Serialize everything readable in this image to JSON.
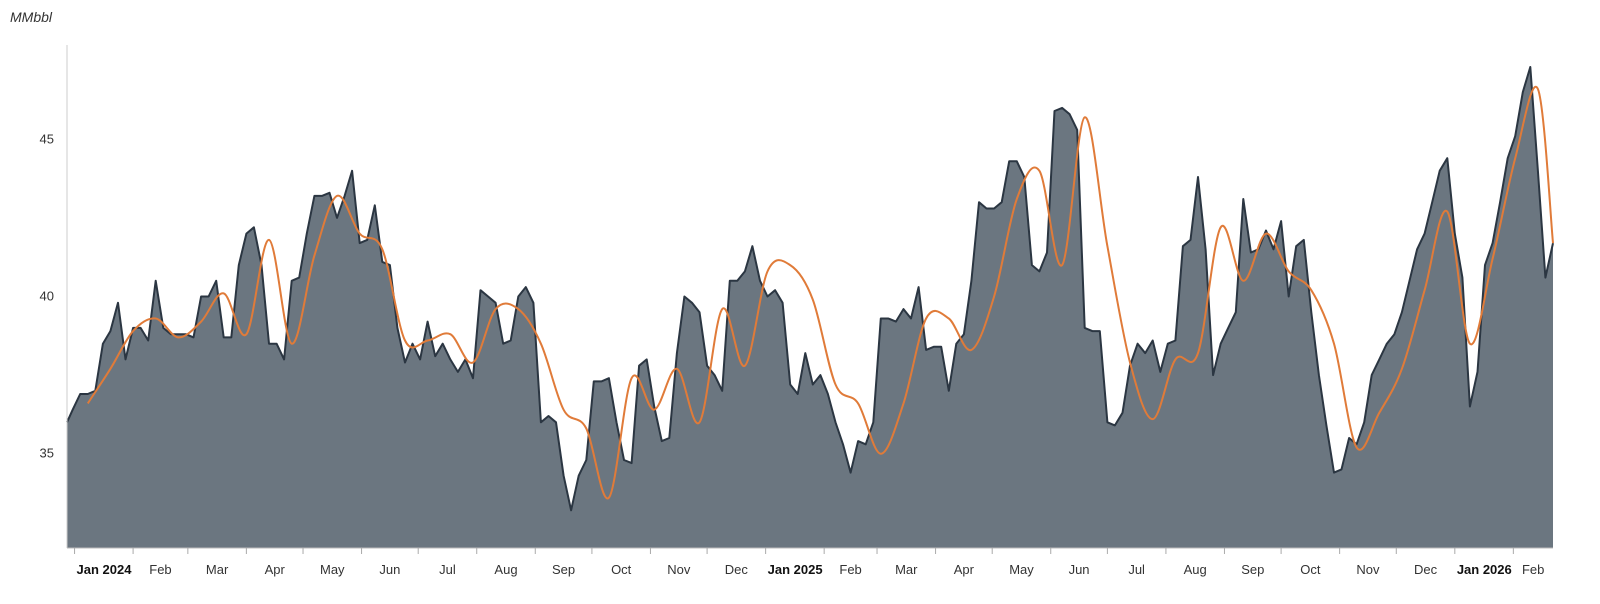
{
  "chart_data": {
    "type": "area",
    "unit_label": "MMbbl",
    "xlim": [
      "2023-12-28",
      "2026-02-22"
    ],
    "ylim": [
      32,
      48
    ],
    "yticks": [
      35,
      40,
      45
    ],
    "xticks": [
      {
        "date": "2024-01-01",
        "label": "Jan 2024",
        "bold": true
      },
      {
        "date": "2024-02-01",
        "label": "Feb",
        "bold": false
      },
      {
        "date": "2024-03-01",
        "label": "Mar",
        "bold": false
      },
      {
        "date": "2024-04-01",
        "label": "Apr",
        "bold": false
      },
      {
        "date": "2024-05-01",
        "label": "May",
        "bold": false
      },
      {
        "date": "2024-06-01",
        "label": "Jun",
        "bold": false
      },
      {
        "date": "2024-07-01",
        "label": "Jul",
        "bold": false
      },
      {
        "date": "2024-08-01",
        "label": "Aug",
        "bold": false
      },
      {
        "date": "2024-09-01",
        "label": "Sep",
        "bold": false
      },
      {
        "date": "2024-10-01",
        "label": "Oct",
        "bold": false
      },
      {
        "date": "2024-11-01",
        "label": "Nov",
        "bold": false
      },
      {
        "date": "2024-12-01",
        "label": "Dec",
        "bold": false
      },
      {
        "date": "2025-01-01",
        "label": "Jan 2025",
        "bold": true
      },
      {
        "date": "2025-02-01",
        "label": "Feb",
        "bold": false
      },
      {
        "date": "2025-03-01",
        "label": "Mar",
        "bold": false
      },
      {
        "date": "2025-04-01",
        "label": "Apr",
        "bold": false
      },
      {
        "date": "2025-05-01",
        "label": "May",
        "bold": false
      },
      {
        "date": "2025-06-01",
        "label": "Jun",
        "bold": false
      },
      {
        "date": "2025-07-01",
        "label": "Jul",
        "bold": false
      },
      {
        "date": "2025-08-01",
        "label": "Aug",
        "bold": false
      },
      {
        "date": "2025-09-01",
        "label": "Sep",
        "bold": false
      },
      {
        "date": "2025-10-01",
        "label": "Oct",
        "bold": false
      },
      {
        "date": "2025-11-01",
        "label": "Nov",
        "bold": false
      },
      {
        "date": "2025-12-01",
        "label": "Dec",
        "bold": false
      },
      {
        "date": "2026-01-01",
        "label": "Jan 2026",
        "bold": true
      },
      {
        "date": "2026-02-01",
        "label": "Feb",
        "bold": false
      }
    ],
    "grid": false,
    "legend": "none",
    "colors": {
      "area_fill": "#6b7680",
      "area_stroke": "#2b3642",
      "average_line": "#e07b39"
    },
    "series": [
      {
        "type": "area",
        "x": [
          "2023-12-28",
          "2023-12-31",
          "2024-01-04",
          "2024-01-08",
          "2024-01-12",
          "2024-01-16",
          "2024-01-20",
          "2024-01-24",
          "2024-01-28",
          "2024-02-01",
          "2024-02-05",
          "2024-02-09",
          "2024-02-13",
          "2024-02-17",
          "2024-02-21",
          "2024-02-25",
          "2024-02-29",
          "2024-03-04",
          "2024-03-08",
          "2024-03-12",
          "2024-03-16",
          "2024-03-20",
          "2024-03-24",
          "2024-03-28",
          "2024-04-01",
          "2024-04-05",
          "2024-04-09",
          "2024-04-13",
          "2024-04-17",
          "2024-04-21",
          "2024-04-25",
          "2024-04-29",
          "2024-05-03",
          "2024-05-07",
          "2024-05-11",
          "2024-05-15",
          "2024-05-19",
          "2024-05-23",
          "2024-05-27",
          "2024-05-31",
          "2024-06-04",
          "2024-06-08",
          "2024-06-12",
          "2024-06-16",
          "2024-06-20",
          "2024-06-24",
          "2024-06-28",
          "2024-07-02",
          "2024-07-06",
          "2024-07-10",
          "2024-07-14",
          "2024-07-18",
          "2024-07-22",
          "2024-07-26",
          "2024-07-30",
          "2024-08-03",
          "2024-08-07",
          "2024-08-11",
          "2024-08-15",
          "2024-08-19",
          "2024-08-23",
          "2024-08-27",
          "2024-08-31",
          "2024-09-04",
          "2024-09-08",
          "2024-09-12",
          "2024-09-16",
          "2024-09-20",
          "2024-09-24",
          "2024-09-28",
          "2024-10-02",
          "2024-10-06",
          "2024-10-10",
          "2024-10-14",
          "2024-10-18",
          "2024-10-22",
          "2024-10-26",
          "2024-10-30",
          "2024-11-03",
          "2024-11-07",
          "2024-11-11",
          "2024-11-15",
          "2024-11-19",
          "2024-11-23",
          "2024-11-27",
          "2024-12-01",
          "2024-12-05",
          "2024-12-09",
          "2024-12-13",
          "2024-12-17",
          "2024-12-21",
          "2024-12-25",
          "2024-12-29",
          "2025-01-02",
          "2025-01-06",
          "2025-01-10",
          "2025-01-14",
          "2025-01-18",
          "2025-01-22",
          "2025-01-26",
          "2025-01-30",
          "2025-02-03",
          "2025-02-07",
          "2025-02-11",
          "2025-02-15",
          "2025-02-19",
          "2025-02-23",
          "2025-02-27",
          "2025-03-03",
          "2025-03-07",
          "2025-03-11",
          "2025-03-15",
          "2025-03-19",
          "2025-03-23",
          "2025-03-27",
          "2025-03-31",
          "2025-04-04",
          "2025-04-08",
          "2025-04-12",
          "2025-04-16",
          "2025-04-20",
          "2025-04-24",
          "2025-04-28",
          "2025-05-02",
          "2025-05-06",
          "2025-05-10",
          "2025-05-14",
          "2025-05-18",
          "2025-05-22",
          "2025-05-26",
          "2025-05-30",
          "2025-06-03",
          "2025-06-07",
          "2025-06-11",
          "2025-06-15",
          "2025-06-19",
          "2025-06-23",
          "2025-06-27",
          "2025-07-01",
          "2025-07-05",
          "2025-07-09",
          "2025-07-13",
          "2025-07-17",
          "2025-07-21",
          "2025-07-25",
          "2025-07-29",
          "2025-08-02",
          "2025-08-06",
          "2025-08-10",
          "2025-08-14",
          "2025-08-18",
          "2025-08-22",
          "2025-08-26",
          "2025-08-30",
          "2025-09-03",
          "2025-09-07",
          "2025-09-11",
          "2025-09-15",
          "2025-09-19",
          "2025-09-23",
          "2025-09-27",
          "2025-10-01",
          "2025-10-05",
          "2025-10-09",
          "2025-10-13",
          "2025-10-17",
          "2025-10-21",
          "2025-10-25",
          "2025-10-29",
          "2025-11-02",
          "2025-11-06",
          "2025-11-10",
          "2025-11-14",
          "2025-11-18",
          "2025-11-22",
          "2025-11-26",
          "2025-11-30",
          "2025-12-04",
          "2025-12-08",
          "2025-12-12",
          "2025-12-16",
          "2025-12-20",
          "2025-12-24",
          "2025-12-28",
          "2026-01-01",
          "2026-01-05",
          "2026-01-09",
          "2026-01-13",
          "2026-01-17",
          "2026-01-21",
          "2026-01-25",
          "2026-01-29",
          "2026-02-02",
          "2026-02-06",
          "2026-02-10",
          "2026-02-14",
          "2026-02-18",
          "2026-02-22"
        ],
        "values": [
          36.0,
          36.4,
          36.9,
          36.9,
          37.0,
          38.5,
          38.9,
          39.8,
          38.0,
          39.0,
          39.0,
          38.6,
          40.5,
          39.0,
          38.8,
          38.8,
          38.8,
          38.7,
          40.0,
          40.0,
          40.5,
          38.7,
          38.7,
          41.0,
          42.0,
          42.2,
          41.0,
          38.5,
          38.5,
          38.0,
          40.5,
          40.6,
          42.0,
          43.2,
          43.2,
          43.3,
          42.5,
          43.2,
          44.0,
          41.7,
          41.8,
          42.9,
          41.1,
          41.0,
          39.0,
          37.9,
          38.5,
          38.0,
          39.2,
          38.1,
          38.5,
          38.0,
          37.6,
          38.0,
          37.4,
          40.2,
          40.0,
          39.8,
          38.5,
          38.6,
          40.0,
          40.3,
          39.8,
          36.0,
          36.2,
          36.0,
          34.3,
          33.2,
          34.3,
          34.8,
          37.3,
          37.3,
          37.4,
          36.0,
          34.8,
          34.7,
          37.8,
          38.0,
          36.5,
          35.4,
          35.5,
          38.2,
          40.0,
          39.8,
          39.5,
          37.8,
          37.5,
          37.0,
          40.5,
          40.5,
          40.8,
          41.6,
          40.5,
          40.0,
          40.2,
          39.8,
          37.2,
          36.9,
          38.2,
          37.2,
          37.5,
          36.9,
          36.0,
          35.3,
          34.4,
          35.4,
          35.3,
          36.0,
          39.3,
          39.3,
          39.2,
          39.6,
          39.3,
          40.3,
          38.3,
          38.4,
          38.4,
          37.0,
          38.5,
          38.8,
          40.5,
          43.0,
          42.8,
          42.8,
          43.0,
          44.3,
          44.3,
          43.8,
          41.0,
          40.8,
          41.4,
          45.9,
          46.0,
          45.8,
          45.3,
          39.0,
          38.9,
          38.9,
          36.0,
          35.9,
          36.3,
          37.8,
          38.5,
          38.2,
          38.6,
          37.6,
          38.5,
          38.6,
          41.6,
          41.8,
          43.8,
          41.5,
          37.5,
          38.5,
          39.0,
          39.5,
          43.1,
          41.4,
          41.5,
          42.1,
          41.5,
          42.4,
          40.0,
          41.6,
          41.8,
          39.5,
          37.5,
          35.9,
          34.4,
          34.5,
          35.5,
          35.3,
          36.0,
          37.5,
          38.0,
          38.5,
          38.8,
          39.5,
          40.5,
          41.5,
          42.0,
          43.0,
          44.0,
          44.4,
          42.0,
          40.6,
          36.5,
          37.6,
          41.0,
          41.7,
          43.0,
          44.4,
          45.1,
          46.5,
          47.3,
          44.0,
          40.6,
          41.7
        ],
        "name": ""
      },
      {
        "type": "line",
        "x": [
          "2024-01-08",
          "2024-01-20",
          "2024-02-01",
          "2024-02-13",
          "2024-02-25",
          "2024-03-08",
          "2024-03-20",
          "2024-04-01",
          "2024-04-13",
          "2024-04-25",
          "2024-05-07",
          "2024-05-19",
          "2024-05-31",
          "2024-06-12",
          "2024-06-24",
          "2024-07-06",
          "2024-07-18",
          "2024-07-30",
          "2024-08-11",
          "2024-08-23",
          "2024-09-04",
          "2024-09-16",
          "2024-09-28",
          "2024-10-10",
          "2024-10-22",
          "2024-11-03",
          "2024-11-15",
          "2024-11-27",
          "2024-12-09",
          "2024-12-21",
          "2025-01-02",
          "2025-01-14",
          "2025-01-26",
          "2025-02-07",
          "2025-02-19",
          "2025-03-03",
          "2025-03-15",
          "2025-03-27",
          "2025-04-08",
          "2025-04-20",
          "2025-05-02",
          "2025-05-14",
          "2025-05-26",
          "2025-06-07",
          "2025-06-19",
          "2025-07-01",
          "2025-07-13",
          "2025-07-25",
          "2025-08-06",
          "2025-08-18",
          "2025-08-30",
          "2025-09-11",
          "2025-09-23",
          "2025-10-05",
          "2025-10-17",
          "2025-10-29",
          "2025-11-10",
          "2025-11-22",
          "2025-12-04",
          "2025-12-16",
          "2025-12-28",
          "2026-01-09",
          "2026-01-21",
          "2026-02-02",
          "2026-02-14",
          "2026-02-22"
        ],
        "values": [
          36.6,
          37.7,
          38.9,
          39.3,
          38.7,
          39.2,
          40.1,
          38.8,
          41.8,
          38.5,
          41.3,
          43.2,
          42.0,
          41.5,
          38.6,
          38.6,
          38.8,
          37.9,
          39.6,
          39.6,
          38.5,
          36.4,
          35.8,
          33.6,
          37.4,
          36.4,
          37.7,
          36.0,
          39.6,
          37.8,
          40.8,
          41.0,
          39.9,
          37.2,
          36.6,
          35.0,
          36.6,
          39.3,
          39.3,
          38.3,
          40.0,
          43.1,
          44.0,
          41.0,
          45.7,
          41.6,
          37.9,
          36.1,
          38.0,
          38.2,
          42.2,
          40.5,
          42.0,
          40.8,
          40.2,
          38.5,
          35.2,
          36.3,
          37.7,
          40.2,
          42.7,
          38.5,
          41.2,
          44.4,
          46.6,
          41.7
        ],
        "name": ""
      }
    ]
  }
}
